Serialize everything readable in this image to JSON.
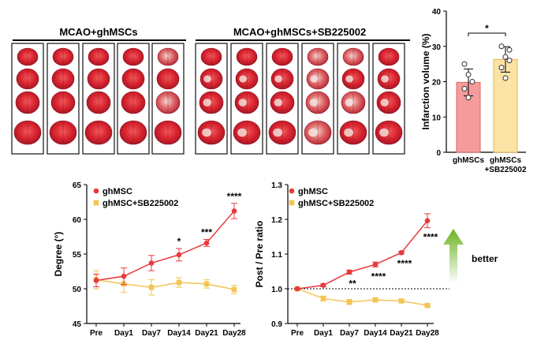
{
  "panel_titles": [
    "MCAO+ghMSCs",
    "MCAO+ghMSCs+SB225002"
  ],
  "better_label": "better",
  "colors": {
    "ghmsc": "#e8393c",
    "sb": "#f2c553",
    "bar_ghmsc": "#f59b9b",
    "bar_sb": "#fbe3a5",
    "arrow": "#7fbf2a"
  },
  "chart_data": [
    {
      "type": "bar",
      "ylabel": "Infarction volume (%)",
      "ylim": [
        0,
        40
      ],
      "yticks": [
        0,
        10,
        20,
        30,
        40
      ],
      "categories": [
        "ghMSCs",
        "ghMSCs\n+SB225002"
      ],
      "values": [
        19.8,
        26.3
      ],
      "errors": [
        3.8,
        3.6
      ],
      "points": [
        [
          25,
          22,
          20,
          18,
          15.5
        ],
        [
          30,
          27,
          26,
          24,
          21,
          29
        ]
      ],
      "significance": "*"
    },
    {
      "type": "line",
      "ylabel": "Degree (°)",
      "ylim": [
        45,
        65
      ],
      "yticks": [
        45,
        50,
        55,
        60,
        65
      ],
      "x": [
        "Pre",
        "Day1",
        "Day7",
        "Day14",
        "Day21",
        "Day28"
      ],
      "series": [
        {
          "name": "ghMSC",
          "values": [
            51.2,
            51.8,
            53.7,
            54.9,
            56.6,
            61.2
          ],
          "errors": [
            0.9,
            1.2,
            1.1,
            0.9,
            0.5,
            1.1
          ]
        },
        {
          "name": "ghMSC+SB225002",
          "values": [
            51.3,
            50.7,
            50.2,
            50.9,
            50.7,
            49.9
          ],
          "errors": [
            1.3,
            1.2,
            1.1,
            0.7,
            0.6,
            0.6
          ]
        }
      ],
      "annotations": [
        "",
        "",
        "",
        "*",
        "***",
        "****"
      ]
    },
    {
      "type": "line",
      "ylabel": "Post / Pre ratio",
      "ylim": [
        0.9,
        1.3
      ],
      "yticks": [
        0.9,
        1.0,
        1.1,
        1.2,
        1.3
      ],
      "yticklabels": [
        "0.9",
        "1.0",
        "1.1",
        "1.2",
        "1.3"
      ],
      "reference_line": 1.0,
      "x": [
        "Pre",
        "Day1",
        "Day7",
        "Day14",
        "Day21",
        "Day28"
      ],
      "series": [
        {
          "name": "ghMSC",
          "values": [
            1.0,
            1.01,
            1.048,
            1.07,
            1.104,
            1.196
          ],
          "errors": [
            0.002,
            0.004,
            0.006,
            0.007,
            0.004,
            0.02
          ]
        },
        {
          "name": "ghMSC+SB225002",
          "values": [
            1.0,
            0.972,
            0.962,
            0.968,
            0.965,
            0.952
          ],
          "errors": [
            0.002,
            0.007,
            0.007,
            0.005,
            0.004,
            0.004
          ]
        }
      ],
      "annotations": [
        "",
        "",
        "**",
        "****",
        "****",
        "****"
      ]
    }
  ]
}
